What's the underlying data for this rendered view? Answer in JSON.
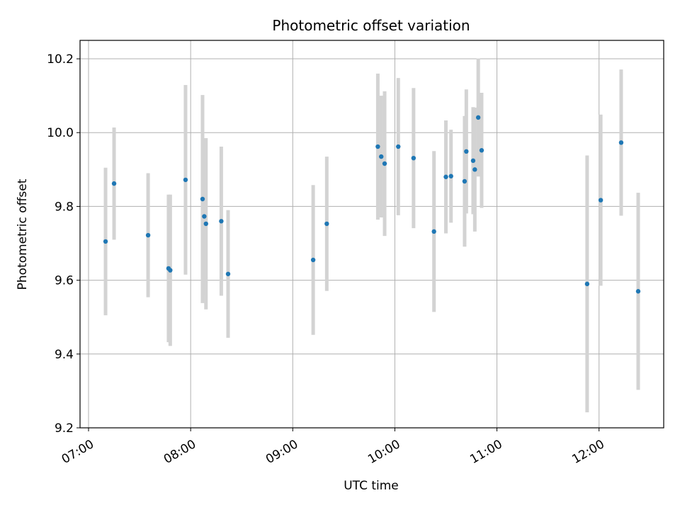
{
  "chart_data": {
    "type": "scatter",
    "title": "Photometric offset variation",
    "xlabel": "UTC time",
    "ylabel": "Photometric offset",
    "x_ticks": [
      "07:00",
      "08:00",
      "09:00",
      "10:00",
      "11:00",
      "12:00"
    ],
    "y_ticks": [
      "9.2",
      "9.4",
      "9.6",
      "9.8",
      "10.0",
      "10.2"
    ],
    "xlim": [
      "06:55",
      "12:38"
    ],
    "ylim": [
      9.2,
      10.25
    ],
    "grid": true,
    "colors": {
      "point": "#1f77b4",
      "errorbar": "#d3d3d3",
      "grid": "#b0b0b0"
    },
    "points": [
      {
        "x": "07:10",
        "y": 9.705,
        "err": 0.2
      },
      {
        "x": "07:15",
        "y": 9.862,
        "err": 0.152
      },
      {
        "x": "07:35",
        "y": 9.722,
        "err": 0.168
      },
      {
        "x": "07:47",
        "y": 9.632,
        "err": 0.2
      },
      {
        "x": "07:48",
        "y": 9.627,
        "err": 0.205
      },
      {
        "x": "07:57",
        "y": 9.872,
        "err": 0.257
      },
      {
        "x": "08:07",
        "y": 9.82,
        "err": 0.282
      },
      {
        "x": "08:08",
        "y": 9.773,
        "err": 0.212
      },
      {
        "x": "08:09",
        "y": 9.753,
        "err": 0.232
      },
      {
        "x": "08:18",
        "y": 9.76,
        "err": 0.202
      },
      {
        "x": "08:22",
        "y": 9.617,
        "err": 0.173
      },
      {
        "x": "09:12",
        "y": 9.655,
        "err": 0.203
      },
      {
        "x": "09:20",
        "y": 9.753,
        "err": 0.182
      },
      {
        "x": "09:50",
        "y": 9.962,
        "err": 0.198
      },
      {
        "x": "09:52",
        "y": 9.935,
        "err": 0.165
      },
      {
        "x": "09:54",
        "y": 9.916,
        "err": 0.196
      },
      {
        "x": "10:02",
        "y": 9.962,
        "err": 0.186
      },
      {
        "x": "10:11",
        "y": 9.931,
        "err": 0.19
      },
      {
        "x": "10:23",
        "y": 9.732,
        "err": 0.218
      },
      {
        "x": "10:30",
        "y": 9.88,
        "err": 0.153
      },
      {
        "x": "10:33",
        "y": 9.882,
        "err": 0.126
      },
      {
        "x": "10:41",
        "y": 9.868,
        "err": 0.177
      },
      {
        "x": "10:42",
        "y": 9.949,
        "err": 0.168
      },
      {
        "x": "10:46",
        "y": 9.924,
        "err": 0.145
      },
      {
        "x": "10:47",
        "y": 9.9,
        "err": 0.168
      },
      {
        "x": "10:49",
        "y": 10.041,
        "err": 0.16
      },
      {
        "x": "10:51",
        "y": 9.952,
        "err": 0.156
      },
      {
        "x": "11:53",
        "y": 9.59,
        "err": 0.348
      },
      {
        "x": "12:01",
        "y": 9.817,
        "err": 0.232
      },
      {
        "x": "12:13",
        "y": 9.973,
        "err": 0.198
      },
      {
        "x": "12:23",
        "y": 9.57,
        "err": 0.267
      }
    ]
  }
}
